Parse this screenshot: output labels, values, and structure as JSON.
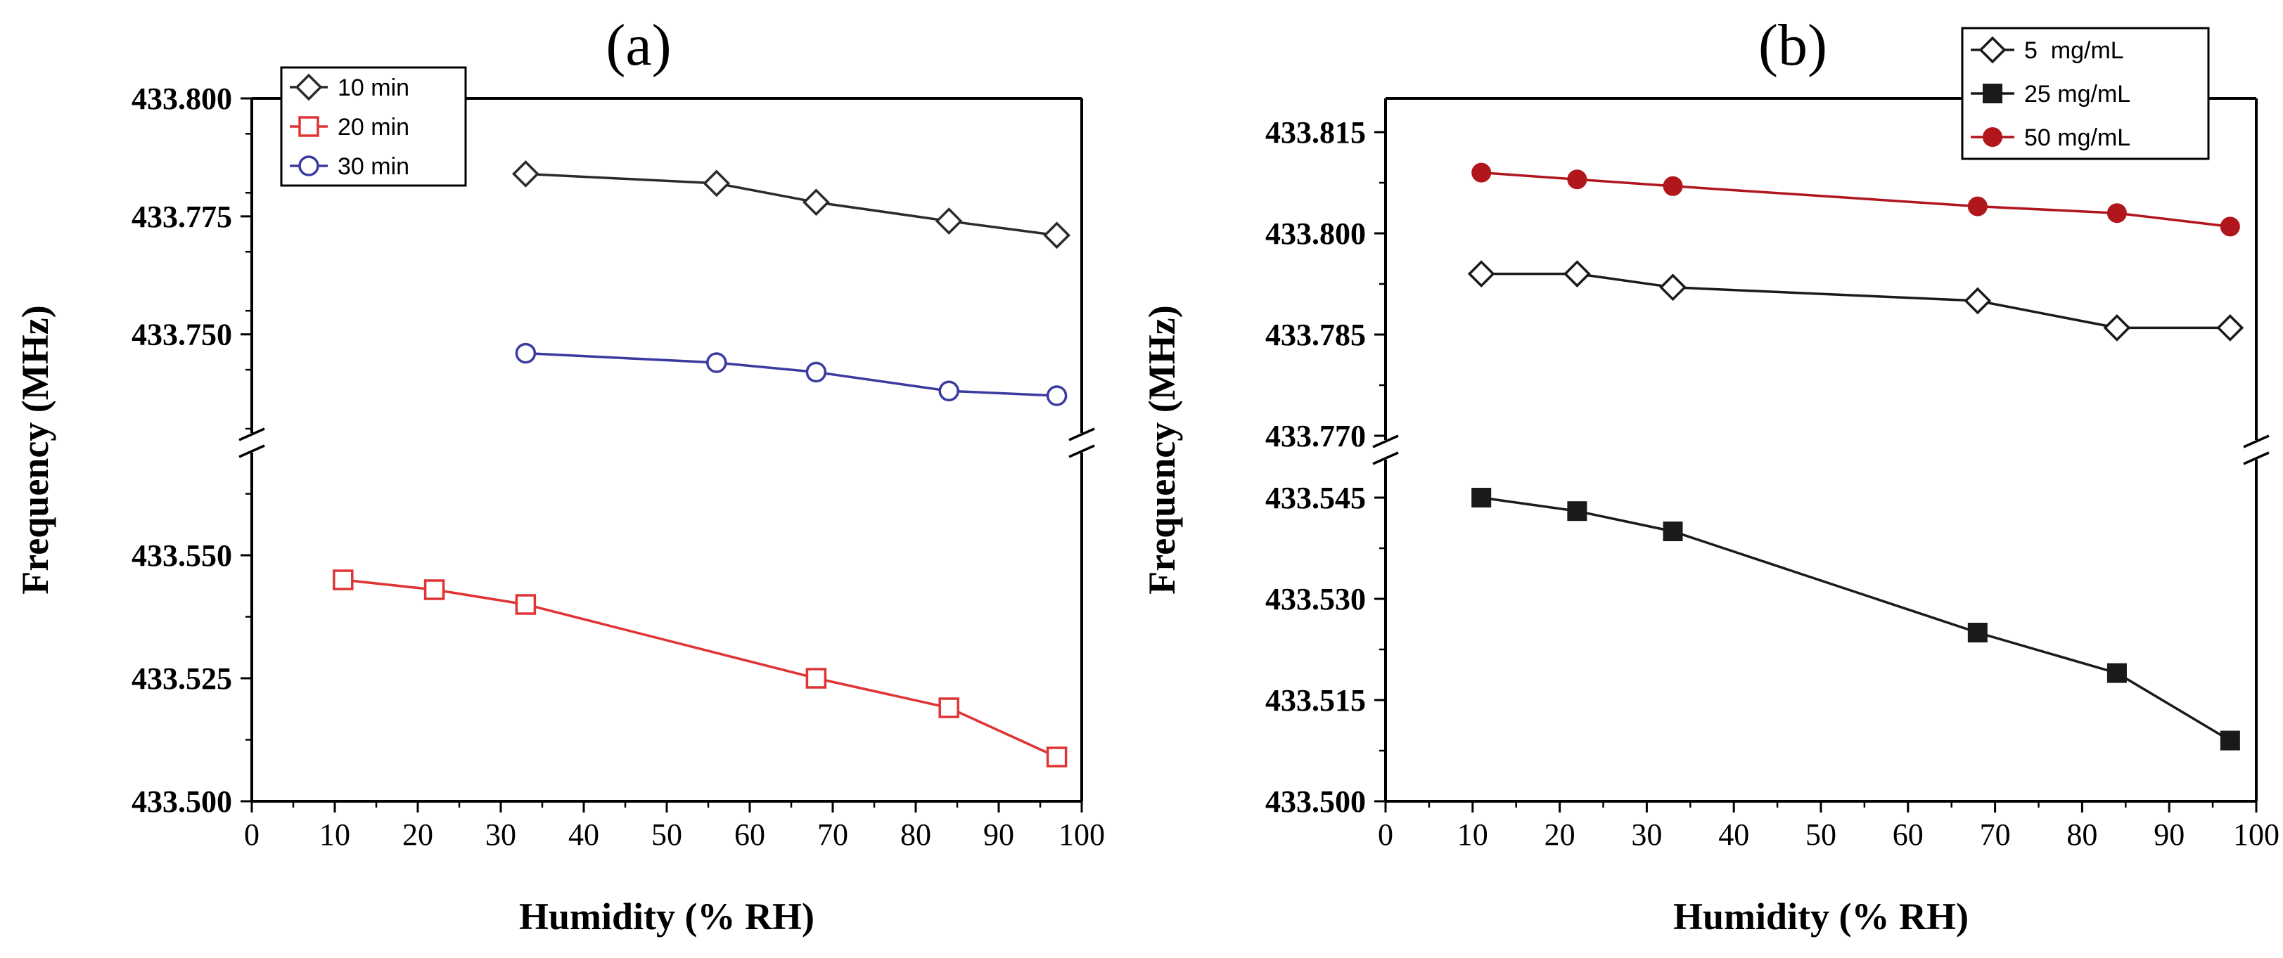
{
  "chart_data": [
    {
      "type": "line",
      "panel_label": "(a)",
      "xlabel": "Humidity (% RH)",
      "ylabel": "Frequency (MHz)",
      "xlim": [
        0,
        100
      ],
      "x_ticks": [
        0,
        10,
        20,
        30,
        40,
        50,
        60,
        70,
        80,
        90,
        100
      ],
      "x_tick_labels": [
        "0",
        "10",
        "20",
        "30",
        "40",
        "50",
        "60",
        "70",
        "80",
        "90",
        "100"
      ],
      "axis_break": true,
      "upper_ylim": [
        433.73,
        433.8
      ],
      "upper_ticks": [
        433.75,
        433.775,
        433.8
      ],
      "upper_tick_labels": [
        "433.750",
        "433.775",
        "433.800"
      ],
      "lower_ylim": [
        433.5,
        433.57
      ],
      "lower_ticks": [
        433.5,
        433.525,
        433.55
      ],
      "lower_tick_labels": [
        "433.500",
        "433.525",
        "433.550"
      ],
      "legend_position": "top-left",
      "series": [
        {
          "name": "10 min",
          "segment": "upper",
          "color": "#2b2b2b",
          "marker": "diamond-open",
          "x": [
            33,
            56,
            68,
            84,
            97
          ],
          "values": [
            433.784,
            433.782,
            433.778,
            433.774,
            433.771
          ]
        },
        {
          "name": "20 min",
          "segment": "lower",
          "color": "#e03434",
          "marker": "square-open",
          "x": [
            11,
            22,
            33,
            68,
            84,
            97
          ],
          "values": [
            433.545,
            433.543,
            433.54,
            433.525,
            433.519,
            433.509
          ]
        },
        {
          "name": "30 min",
          "segment": "upper",
          "color": "#3a3aa0",
          "marker": "circle-open",
          "x": [
            33,
            56,
            68,
            84,
            97
          ],
          "values": [
            433.746,
            433.744,
            433.742,
            433.738,
            433.737
          ]
        }
      ]
    },
    {
      "type": "line",
      "panel_label": "(b)",
      "xlabel": "Humidity (% RH)",
      "ylabel": "Frequency (MHz)",
      "xlim": [
        0,
        100
      ],
      "x_ticks": [
        0,
        10,
        20,
        30,
        40,
        50,
        60,
        70,
        80,
        90,
        100
      ],
      "x_tick_labels": [
        "0",
        "10",
        "20",
        "30",
        "40",
        "50",
        "60",
        "70",
        "80",
        "90",
        "100"
      ],
      "axis_break": true,
      "upper_ylim": [
        433.77,
        433.82
      ],
      "upper_ticks": [
        433.77,
        433.785,
        433.8,
        433.815
      ],
      "upper_tick_labels": [
        "433.770",
        "433.785",
        "433.800",
        "433.815"
      ],
      "lower_ylim": [
        433.5,
        433.55
      ],
      "lower_ticks": [
        433.5,
        433.515,
        433.53,
        433.545
      ],
      "lower_tick_labels": [
        "433.500",
        "433.515",
        "433.530",
        "433.545"
      ],
      "legend_position": "top-right",
      "series": [
        {
          "name": "5  mg/mL",
          "segment": "upper",
          "color": "#1a1a1a",
          "marker": "diamond-open",
          "x": [
            11,
            22,
            33,
            68,
            84,
            97
          ],
          "values": [
            433.794,
            433.794,
            433.792,
            433.79,
            433.786,
            433.786
          ]
        },
        {
          "name": "25 mg/mL",
          "segment": "lower",
          "color": "#1a1a1a",
          "marker": "square-filled",
          "x": [
            11,
            22,
            33,
            68,
            84,
            97
          ],
          "values": [
            433.545,
            433.543,
            433.54,
            433.525,
            433.519,
            433.509
          ]
        },
        {
          "name": "50 mg/mL",
          "segment": "upper",
          "color": "#b0161c",
          "marker": "circle-filled",
          "x": [
            11,
            22,
            33,
            68,
            84,
            97
          ],
          "values": [
            433.809,
            433.808,
            433.807,
            433.804,
            433.803,
            433.801
          ]
        }
      ]
    }
  ]
}
